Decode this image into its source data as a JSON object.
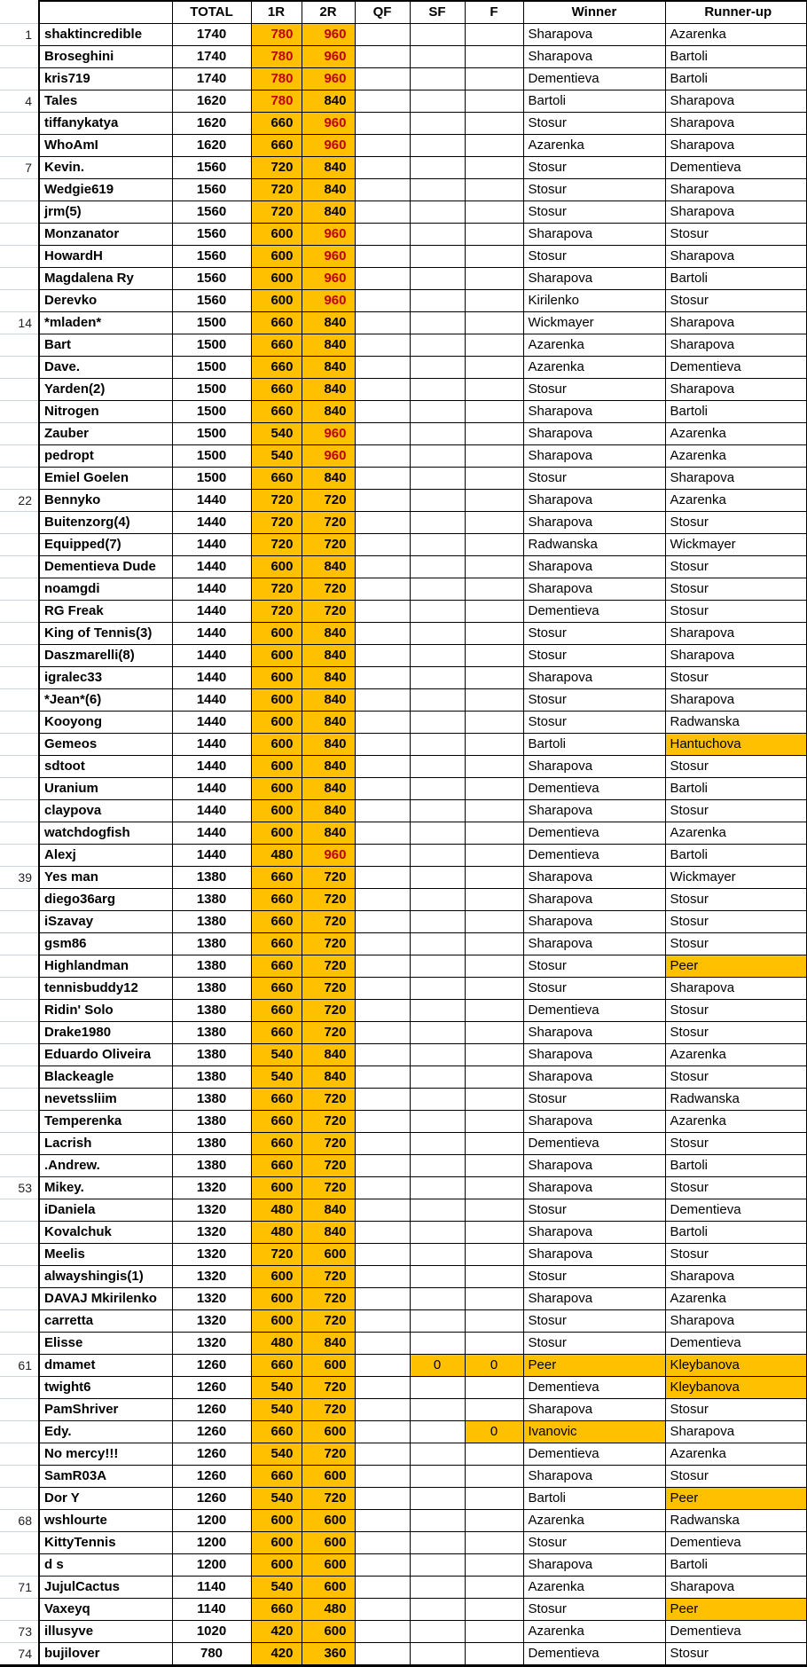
{
  "table": {
    "headers": {
      "rank": "",
      "name": "",
      "total": "TOTAL",
      "r1": "1R",
      "r2": "2R",
      "qf": "QF",
      "sf": "SF",
      "f": "F",
      "winner": "Winner",
      "runner_up": "Runner-up"
    },
    "colors": {
      "highlight_fill": "#FFC000",
      "red_text": "#C00000",
      "grid_black": "#000000",
      "gutter_gridline": "#ccd3dd"
    },
    "flags_legend": "a=1R value red, b=2R value red, s=SF cell orange, f=F cell orange, w=Winner cell orange, r=Runner-up cell orange",
    "row_format": [
      "rank",
      "name",
      "total",
      "r1",
      "r2",
      "qf",
      "sf",
      "f",
      "winner",
      "runner_up",
      "flags"
    ],
    "rows": [
      [
        "1",
        "shaktincredible",
        "1740",
        "780",
        "960",
        "",
        "",
        "",
        "Sharapova",
        "Azarenka",
        "ab"
      ],
      [
        "",
        "Broseghini",
        "1740",
        "780",
        "960",
        "",
        "",
        "",
        "Sharapova",
        "Bartoli",
        "ab"
      ],
      [
        "",
        "kris719",
        "1740",
        "780",
        "960",
        "",
        "",
        "",
        "Dementieva",
        "Bartoli",
        "ab"
      ],
      [
        "4",
        "Tales",
        "1620",
        "780",
        "840",
        "",
        "",
        "",
        "Bartoli",
        "Sharapova",
        "a"
      ],
      [
        "",
        "tiffanykatya",
        "1620",
        "660",
        "960",
        "",
        "",
        "",
        "Stosur",
        "Sharapova",
        "b"
      ],
      [
        "",
        "WhoAmI",
        "1620",
        "660",
        "960",
        "",
        "",
        "",
        "Azarenka",
        "Sharapova",
        "b"
      ],
      [
        "7",
        "Kevin.",
        "1560",
        "720",
        "840",
        "",
        "",
        "",
        "Stosur",
        "Dementieva",
        ""
      ],
      [
        "",
        "Wedgie619",
        "1560",
        "720",
        "840",
        "",
        "",
        "",
        "Stosur",
        "Sharapova",
        ""
      ],
      [
        "",
        "jrm(5)",
        "1560",
        "720",
        "840",
        "",
        "",
        "",
        "Stosur",
        "Sharapova",
        ""
      ],
      [
        "",
        "Monzanator",
        "1560",
        "600",
        "960",
        "",
        "",
        "",
        "Sharapova",
        "Stosur",
        "b"
      ],
      [
        "",
        "HowardH",
        "1560",
        "600",
        "960",
        "",
        "",
        "",
        "Stosur",
        "Sharapova",
        "b"
      ],
      [
        "",
        "Magdalena Ry",
        "1560",
        "600",
        "960",
        "",
        "",
        "",
        "Sharapova",
        "Bartoli",
        "b"
      ],
      [
        "",
        "Derevko",
        "1560",
        "600",
        "960",
        "",
        "",
        "",
        "Kirilenko",
        "Stosur",
        "b"
      ],
      [
        "14",
        "*mladen*",
        "1500",
        "660",
        "840",
        "",
        "",
        "",
        "Wickmayer",
        "Sharapova",
        ""
      ],
      [
        "",
        "Bart",
        "1500",
        "660",
        "840",
        "",
        "",
        "",
        "Azarenka",
        "Sharapova",
        ""
      ],
      [
        "",
        "Dave.",
        "1500",
        "660",
        "840",
        "",
        "",
        "",
        "Azarenka",
        "Dementieva",
        ""
      ],
      [
        "",
        "Yarden(2)",
        "1500",
        "660",
        "840",
        "",
        "",
        "",
        "Stosur",
        "Sharapova",
        ""
      ],
      [
        "",
        "Nitrogen",
        "1500",
        "660",
        "840",
        "",
        "",
        "",
        "Sharapova",
        "Bartoli",
        ""
      ],
      [
        "",
        "Zauber",
        "1500",
        "540",
        "960",
        "",
        "",
        "",
        "Sharapova",
        "Azarenka",
        "b"
      ],
      [
        "",
        "pedropt",
        "1500",
        "540",
        "960",
        "",
        "",
        "",
        "Sharapova",
        "Azarenka",
        "b"
      ],
      [
        "",
        "Emiel Goelen",
        "1500",
        "660",
        "840",
        "",
        "",
        "",
        "Stosur",
        "Sharapova",
        ""
      ],
      [
        "22",
        "Bennyko",
        "1440",
        "720",
        "720",
        "",
        "",
        "",
        "Sharapova",
        "Azarenka",
        ""
      ],
      [
        "",
        "Buitenzorg(4)",
        "1440",
        "720",
        "720",
        "",
        "",
        "",
        "Sharapova",
        "Stosur",
        ""
      ],
      [
        "",
        "Equipped(7)",
        "1440",
        "720",
        "720",
        "",
        "",
        "",
        "Radwanska",
        "Wickmayer",
        ""
      ],
      [
        "",
        "Dementieva Dude",
        "1440",
        "600",
        "840",
        "",
        "",
        "",
        "Sharapova",
        "Stosur",
        ""
      ],
      [
        "",
        "noamgdi",
        "1440",
        "720",
        "720",
        "",
        "",
        "",
        "Sharapova",
        "Stosur",
        ""
      ],
      [
        "",
        "RG Freak",
        "1440",
        "720",
        "720",
        "",
        "",
        "",
        "Dementieva",
        "Stosur",
        ""
      ],
      [
        "",
        "King of Tennis(3)",
        "1440",
        "600",
        "840",
        "",
        "",
        "",
        "Stosur",
        "Sharapova",
        ""
      ],
      [
        "",
        "Daszmarelli(8)",
        "1440",
        "600",
        "840",
        "",
        "",
        "",
        "Stosur",
        "Sharapova",
        ""
      ],
      [
        "",
        "igralec33",
        "1440",
        "600",
        "840",
        "",
        "",
        "",
        "Sharapova",
        "Stosur",
        ""
      ],
      [
        "",
        "*Jean*(6)",
        "1440",
        "600",
        "840",
        "",
        "",
        "",
        "Stosur",
        "Sharapova",
        ""
      ],
      [
        "",
        "Kooyong",
        "1440",
        "600",
        "840",
        "",
        "",
        "",
        "Stosur",
        "Radwanska",
        ""
      ],
      [
        "",
        "Gemeos",
        "1440",
        "600",
        "840",
        "",
        "",
        "",
        "Bartoli",
        "Hantuchova",
        "r"
      ],
      [
        "",
        "sdtoot",
        "1440",
        "600",
        "840",
        "",
        "",
        "",
        "Sharapova",
        "Stosur",
        ""
      ],
      [
        "",
        "Uranium",
        "1440",
        "600",
        "840",
        "",
        "",
        "",
        "Dementieva",
        "Bartoli",
        ""
      ],
      [
        "",
        "claypova",
        "1440",
        "600",
        "840",
        "",
        "",
        "",
        "Sharapova",
        "Stosur",
        ""
      ],
      [
        "",
        "watchdogfish",
        "1440",
        "600",
        "840",
        "",
        "",
        "",
        "Dementieva",
        "Azarenka",
        ""
      ],
      [
        "",
        "Alexj",
        "1440",
        "480",
        "960",
        "",
        "",
        "",
        "Dementieva",
        "Bartoli",
        "b"
      ],
      [
        "39",
        "Yes man",
        "1380",
        "660",
        "720",
        "",
        "",
        "",
        "Sharapova",
        "Wickmayer",
        ""
      ],
      [
        "",
        "diego36arg",
        "1380",
        "660",
        "720",
        "",
        "",
        "",
        "Sharapova",
        "Stosur",
        ""
      ],
      [
        "",
        "iSzavay",
        "1380",
        "660",
        "720",
        "",
        "",
        "",
        "Sharapova",
        "Stosur",
        ""
      ],
      [
        "",
        "gsm86",
        "1380",
        "660",
        "720",
        "",
        "",
        "",
        "Sharapova",
        "Stosur",
        ""
      ],
      [
        "",
        "Highlandman",
        "1380",
        "660",
        "720",
        "",
        "",
        "",
        "Stosur",
        "Peer",
        "r"
      ],
      [
        "",
        "tennisbuddy12",
        "1380",
        "660",
        "720",
        "",
        "",
        "",
        "Stosur",
        "Sharapova",
        ""
      ],
      [
        "",
        "Ridin' Solo",
        "1380",
        "660",
        "720",
        "",
        "",
        "",
        "Dementieva",
        "Stosur",
        ""
      ],
      [
        "",
        "Drake1980",
        "1380",
        "660",
        "720",
        "",
        "",
        "",
        "Sharapova",
        "Stosur",
        ""
      ],
      [
        "",
        "Eduardo Oliveira",
        "1380",
        "540",
        "840",
        "",
        "",
        "",
        "Sharapova",
        "Azarenka",
        ""
      ],
      [
        "",
        "Blackeagle",
        "1380",
        "540",
        "840",
        "",
        "",
        "",
        "Sharapova",
        "Stosur",
        ""
      ],
      [
        "",
        "nevetssliim",
        "1380",
        "660",
        "720",
        "",
        "",
        "",
        "Stosur",
        "Radwanska",
        ""
      ],
      [
        "",
        "Temperenka",
        "1380",
        "660",
        "720",
        "",
        "",
        "",
        "Sharapova",
        "Azarenka",
        ""
      ],
      [
        "",
        "Lacrish",
        "1380",
        "660",
        "720",
        "",
        "",
        "",
        "Dementieva",
        "Stosur",
        ""
      ],
      [
        "",
        ".Andrew.",
        "1380",
        "660",
        "720",
        "",
        "",
        "",
        "Sharapova",
        "Bartoli",
        ""
      ],
      [
        "53",
        "Mikey.",
        "1320",
        "600",
        "720",
        "",
        "",
        "",
        "Sharapova",
        "Stosur",
        ""
      ],
      [
        "",
        "iDaniela",
        "1320",
        "480",
        "840",
        "",
        "",
        "",
        "Stosur",
        "Dementieva",
        ""
      ],
      [
        "",
        "Kovalchuk",
        "1320",
        "480",
        "840",
        "",
        "",
        "",
        "Sharapova",
        "Bartoli",
        ""
      ],
      [
        "",
        "Meelis",
        "1320",
        "720",
        "600",
        "",
        "",
        "",
        "Sharapova",
        "Stosur",
        ""
      ],
      [
        "",
        "alwayshingis(1)",
        "1320",
        "600",
        "720",
        "",
        "",
        "",
        "Stosur",
        "Sharapova",
        ""
      ],
      [
        "",
        "DAVAJ Mkirilenko",
        "1320",
        "600",
        "720",
        "",
        "",
        "",
        "Sharapova",
        "Azarenka",
        ""
      ],
      [
        "",
        "carretta",
        "1320",
        "600",
        "720",
        "",
        "",
        "",
        "Stosur",
        "Sharapova",
        ""
      ],
      [
        "",
        "Elisse",
        "1320",
        "480",
        "840",
        "",
        "",
        "",
        "Stosur",
        "Dementieva",
        ""
      ],
      [
        "61",
        "dmamet",
        "1260",
        "660",
        "600",
        "",
        "0",
        "0",
        "Peer",
        "Kleybanova",
        "sfwr"
      ],
      [
        "",
        "twight6",
        "1260",
        "540",
        "720",
        "",
        "",
        "",
        "Dementieva",
        "Kleybanova",
        "r"
      ],
      [
        "",
        "PamShriver",
        "1260",
        "540",
        "720",
        "",
        "",
        "",
        "Sharapova",
        "Stosur",
        ""
      ],
      [
        "",
        "Edy.",
        "1260",
        "660",
        "600",
        "",
        "",
        "0",
        "Ivanovic",
        "Sharapova",
        "fw"
      ],
      [
        "",
        "No mercy!!!",
        "1260",
        "540",
        "720",
        "",
        "",
        "",
        "Dementieva",
        "Azarenka",
        ""
      ],
      [
        "",
        "SamR03A",
        "1260",
        "660",
        "600",
        "",
        "",
        "",
        "Sharapova",
        "Stosur",
        ""
      ],
      [
        "",
        "Dor Y",
        "1260",
        "540",
        "720",
        "",
        "",
        "",
        "Bartoli",
        "Peer",
        "r"
      ],
      [
        "68",
        "wshlourte",
        "1200",
        "600",
        "600",
        "",
        "",
        "",
        "Azarenka",
        "Radwanska",
        ""
      ],
      [
        "",
        "KittyTennis",
        "1200",
        "600",
        "600",
        "",
        "",
        "",
        "Stosur",
        "Dementieva",
        ""
      ],
      [
        "",
        "d s",
        "1200",
        "600",
        "600",
        "",
        "",
        "",
        "Sharapova",
        "Bartoli",
        ""
      ],
      [
        "71",
        "JujulCactus",
        "1140",
        "540",
        "600",
        "",
        "",
        "",
        "Azarenka",
        "Sharapova",
        ""
      ],
      [
        "",
        "Vaxeyq",
        "1140",
        "660",
        "480",
        "",
        "",
        "",
        "Stosur",
        "Peer",
        "r"
      ],
      [
        "73",
        "illusyve",
        "1020",
        "420",
        "600",
        "",
        "",
        "",
        "Azarenka",
        "Dementieva",
        ""
      ],
      [
        "74",
        "bujilover",
        "780",
        "420",
        "360",
        "",
        "",
        "",
        "Dementieva",
        "Stosur",
        ""
      ]
    ]
  }
}
